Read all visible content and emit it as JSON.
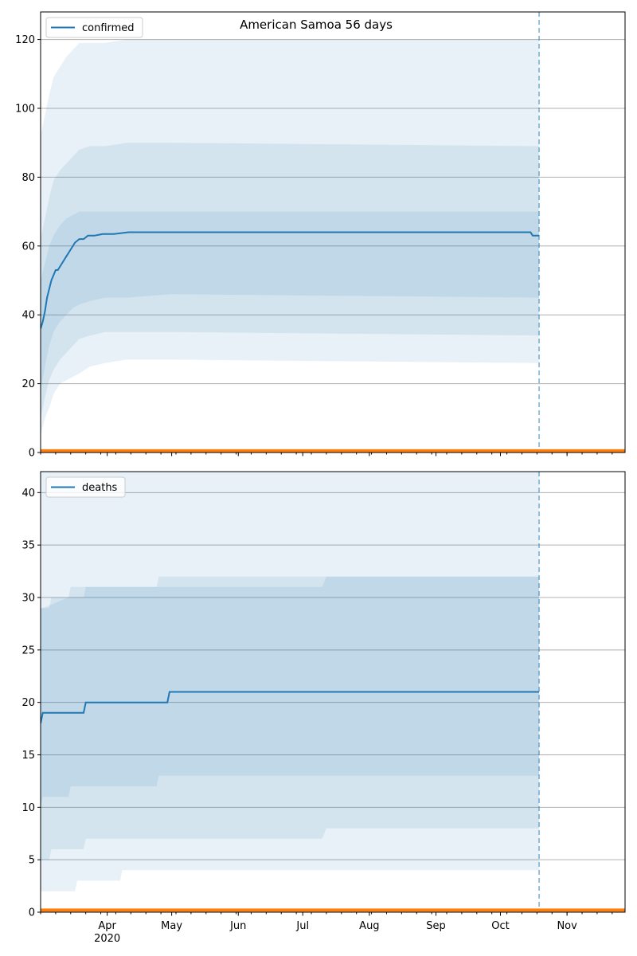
{
  "figure_title": "American Samoa 56 days",
  "chart_data": [
    {
      "type": "line",
      "legend": "confirmed",
      "legend_placement": "upper-left",
      "ylim": [
        0,
        128
      ],
      "yticks": [
        0,
        20,
        40,
        60,
        80,
        100,
        120
      ],
      "grid": "horizontal",
      "forecast_marker": "2020-10-19",
      "series": [
        {
          "name": "confirmed",
          "x": [
            "2020-03-01",
            "2020-03-02",
            "2020-03-03",
            "2020-03-04",
            "2020-03-06",
            "2020-03-08",
            "2020-03-09",
            "2020-03-11",
            "2020-03-13",
            "2020-03-15",
            "2020-03-17",
            "2020-03-19",
            "2020-03-21",
            "2020-03-23",
            "2020-03-25",
            "2020-03-26",
            "2020-03-30",
            "2020-04-04",
            "2020-04-11",
            "2020-10-15",
            "2020-10-16",
            "2020-10-19"
          ],
          "values": [
            36,
            38,
            41,
            45,
            50,
            53,
            53,
            55,
            57,
            59,
            61,
            62,
            62,
            63,
            63,
            63,
            63.5,
            63.5,
            64,
            64,
            63,
            63
          ]
        }
      ],
      "bands": [
        {
          "name": "outer",
          "x": [
            "2020-03-01",
            "2020-03-03",
            "2020-03-05",
            "2020-03-07",
            "2020-03-10",
            "2020-03-13",
            "2020-03-16",
            "2020-03-19",
            "2020-03-24",
            "2020-03-31",
            "2020-04-10",
            "2020-05-01",
            "2020-10-19"
          ],
          "lower": [
            5,
            10,
            13,
            17,
            20,
            21,
            22,
            23,
            25,
            26,
            27,
            27,
            26
          ],
          "upper": [
            92,
            98,
            104,
            109,
            112,
            115,
            117,
            119,
            119,
            119,
            120,
            120,
            120
          ]
        },
        {
          "name": "middle",
          "x": [
            "2020-03-01",
            "2020-03-03",
            "2020-03-05",
            "2020-03-07",
            "2020-03-10",
            "2020-03-13",
            "2020-03-16",
            "2020-03-19",
            "2020-03-24",
            "2020-03-31",
            "2020-04-10",
            "2020-05-01",
            "2020-10-19"
          ],
          "lower": [
            10,
            16,
            21,
            24,
            27,
            29,
            31,
            33,
            34,
            35,
            35,
            35,
            34
          ],
          "upper": [
            62,
            68,
            74,
            79,
            82,
            84,
            86,
            88,
            89,
            89,
            90,
            90,
            89
          ]
        },
        {
          "name": "inner",
          "x": [
            "2020-03-01",
            "2020-03-03",
            "2020-03-05",
            "2020-03-07",
            "2020-03-10",
            "2020-03-13",
            "2020-03-16",
            "2020-03-19",
            "2020-03-24",
            "2020-03-31",
            "2020-04-10",
            "2020-05-01",
            "2020-10-19"
          ],
          "lower": [
            18,
            25,
            31,
            35,
            38,
            40,
            42,
            43,
            44,
            45,
            45,
            46,
            45
          ],
          "upper": [
            50,
            55,
            60,
            63,
            66,
            68,
            69,
            70,
            70,
            70,
            70,
            70,
            70
          ]
        }
      ],
      "baseline_value": 0.5
    },
    {
      "type": "line",
      "legend": "deaths",
      "legend_placement": "upper-left",
      "ylim": [
        0,
        42
      ],
      "yticks": [
        0,
        5,
        10,
        15,
        20,
        25,
        30,
        35,
        40
      ],
      "grid": "horizontal",
      "forecast_marker": "2020-10-19",
      "series": [
        {
          "name": "deaths",
          "x": [
            "2020-03-01",
            "2020-03-02",
            "2020-03-21",
            "2020-03-22",
            "2020-04-29",
            "2020-04-30",
            "2020-10-19"
          ],
          "values": [
            18,
            19,
            19,
            20,
            20,
            21,
            21
          ]
        }
      ],
      "bands": [
        {
          "name": "outer",
          "x": [
            "2020-03-01",
            "2020-03-17",
            "2020-03-18",
            "2020-04-07",
            "2020-04-08",
            "2020-10-19"
          ],
          "lower": [
            2,
            2,
            3,
            3,
            4,
            4
          ],
          "upper": [
            42,
            42,
            42,
            42,
            42,
            42
          ]
        },
        {
          "name": "middle",
          "x": [
            "2020-03-01",
            "2020-03-05",
            "2020-03-06",
            "2020-03-21",
            "2020-03-22",
            "2020-07-10",
            "2020-07-12",
            "2020-10-19"
          ],
          "lower": [
            5,
            5,
            6,
            6,
            7,
            7,
            8,
            8
          ],
          "upper": [
            29,
            29,
            30,
            30,
            31,
            31,
            32,
            32
          ]
        },
        {
          "name": "inner",
          "x": [
            "2020-03-01",
            "2020-03-02",
            "2020-03-14",
            "2020-03-15",
            "2020-04-24",
            "2020-04-25",
            "2020-10-19"
          ],
          "lower": [
            10,
            11,
            11,
            12,
            12,
            13,
            13
          ],
          "upper": [
            29,
            29,
            30,
            31,
            31,
            32,
            32
          ]
        }
      ],
      "baseline_value": 0.2
    }
  ],
  "x_axis": {
    "start": "2020-03-01",
    "end": "2020-11-28",
    "month_labels": [
      {
        "date": "2020-04-01",
        "label": "Apr"
      },
      {
        "date": "2020-05-01",
        "label": "May"
      },
      {
        "date": "2020-06-01",
        "label": "Jun"
      },
      {
        "date": "2020-07-01",
        "label": "Jul"
      },
      {
        "date": "2020-08-01",
        "label": "Aug"
      },
      {
        "date": "2020-09-01",
        "label": "Sep"
      },
      {
        "date": "2020-10-01",
        "label": "Oct"
      },
      {
        "date": "2020-11-01",
        "label": "Nov"
      }
    ],
    "year_label": "2020",
    "minor_every_days": 7
  },
  "colors": {
    "line": "#1f77b4",
    "band": "#1f77b4",
    "baseline": "#ff7f0e",
    "grid": "#b0b0b0"
  }
}
